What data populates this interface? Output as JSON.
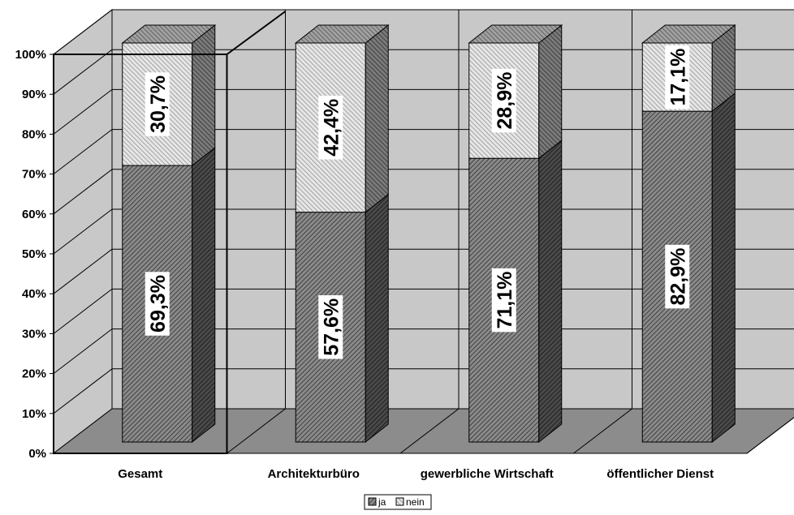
{
  "chart_data": {
    "type": "bar",
    "stacked": true,
    "percent": true,
    "three_d": true,
    "categories": [
      "Gesamt",
      "Architekturbüro",
      "gewerbliche Wirtschaft",
      "öffentlicher Dienst"
    ],
    "series": [
      {
        "name": "ja",
        "values": [
          69.3,
          57.6,
          71.1,
          82.9
        ],
        "labels": [
          "69,3%",
          "57,6%",
          "71,1%",
          "82,9%"
        ],
        "color": "#7a7a7a"
      },
      {
        "name": "nein",
        "values": [
          30.7,
          42.4,
          28.9,
          17.1
        ],
        "labels": [
          "30,7%",
          "42,4%",
          "28,9%",
          "17,1%"
        ],
        "color": "#d4d4d4"
      }
    ],
    "y_ticks": [
      "0%",
      "10%",
      "20%",
      "30%",
      "40%",
      "50%",
      "60%",
      "70%",
      "80%",
      "90%",
      "100%"
    ],
    "ylim": [
      0,
      100
    ],
    "grid": true,
    "legend_position": "bottom-center",
    "title": "",
    "xlabel": "",
    "ylabel": "",
    "colors": {
      "wall": "#c8c8c8",
      "floor": "#8c8c8c",
      "grid": "#000000",
      "highlight": "#000000"
    }
  }
}
